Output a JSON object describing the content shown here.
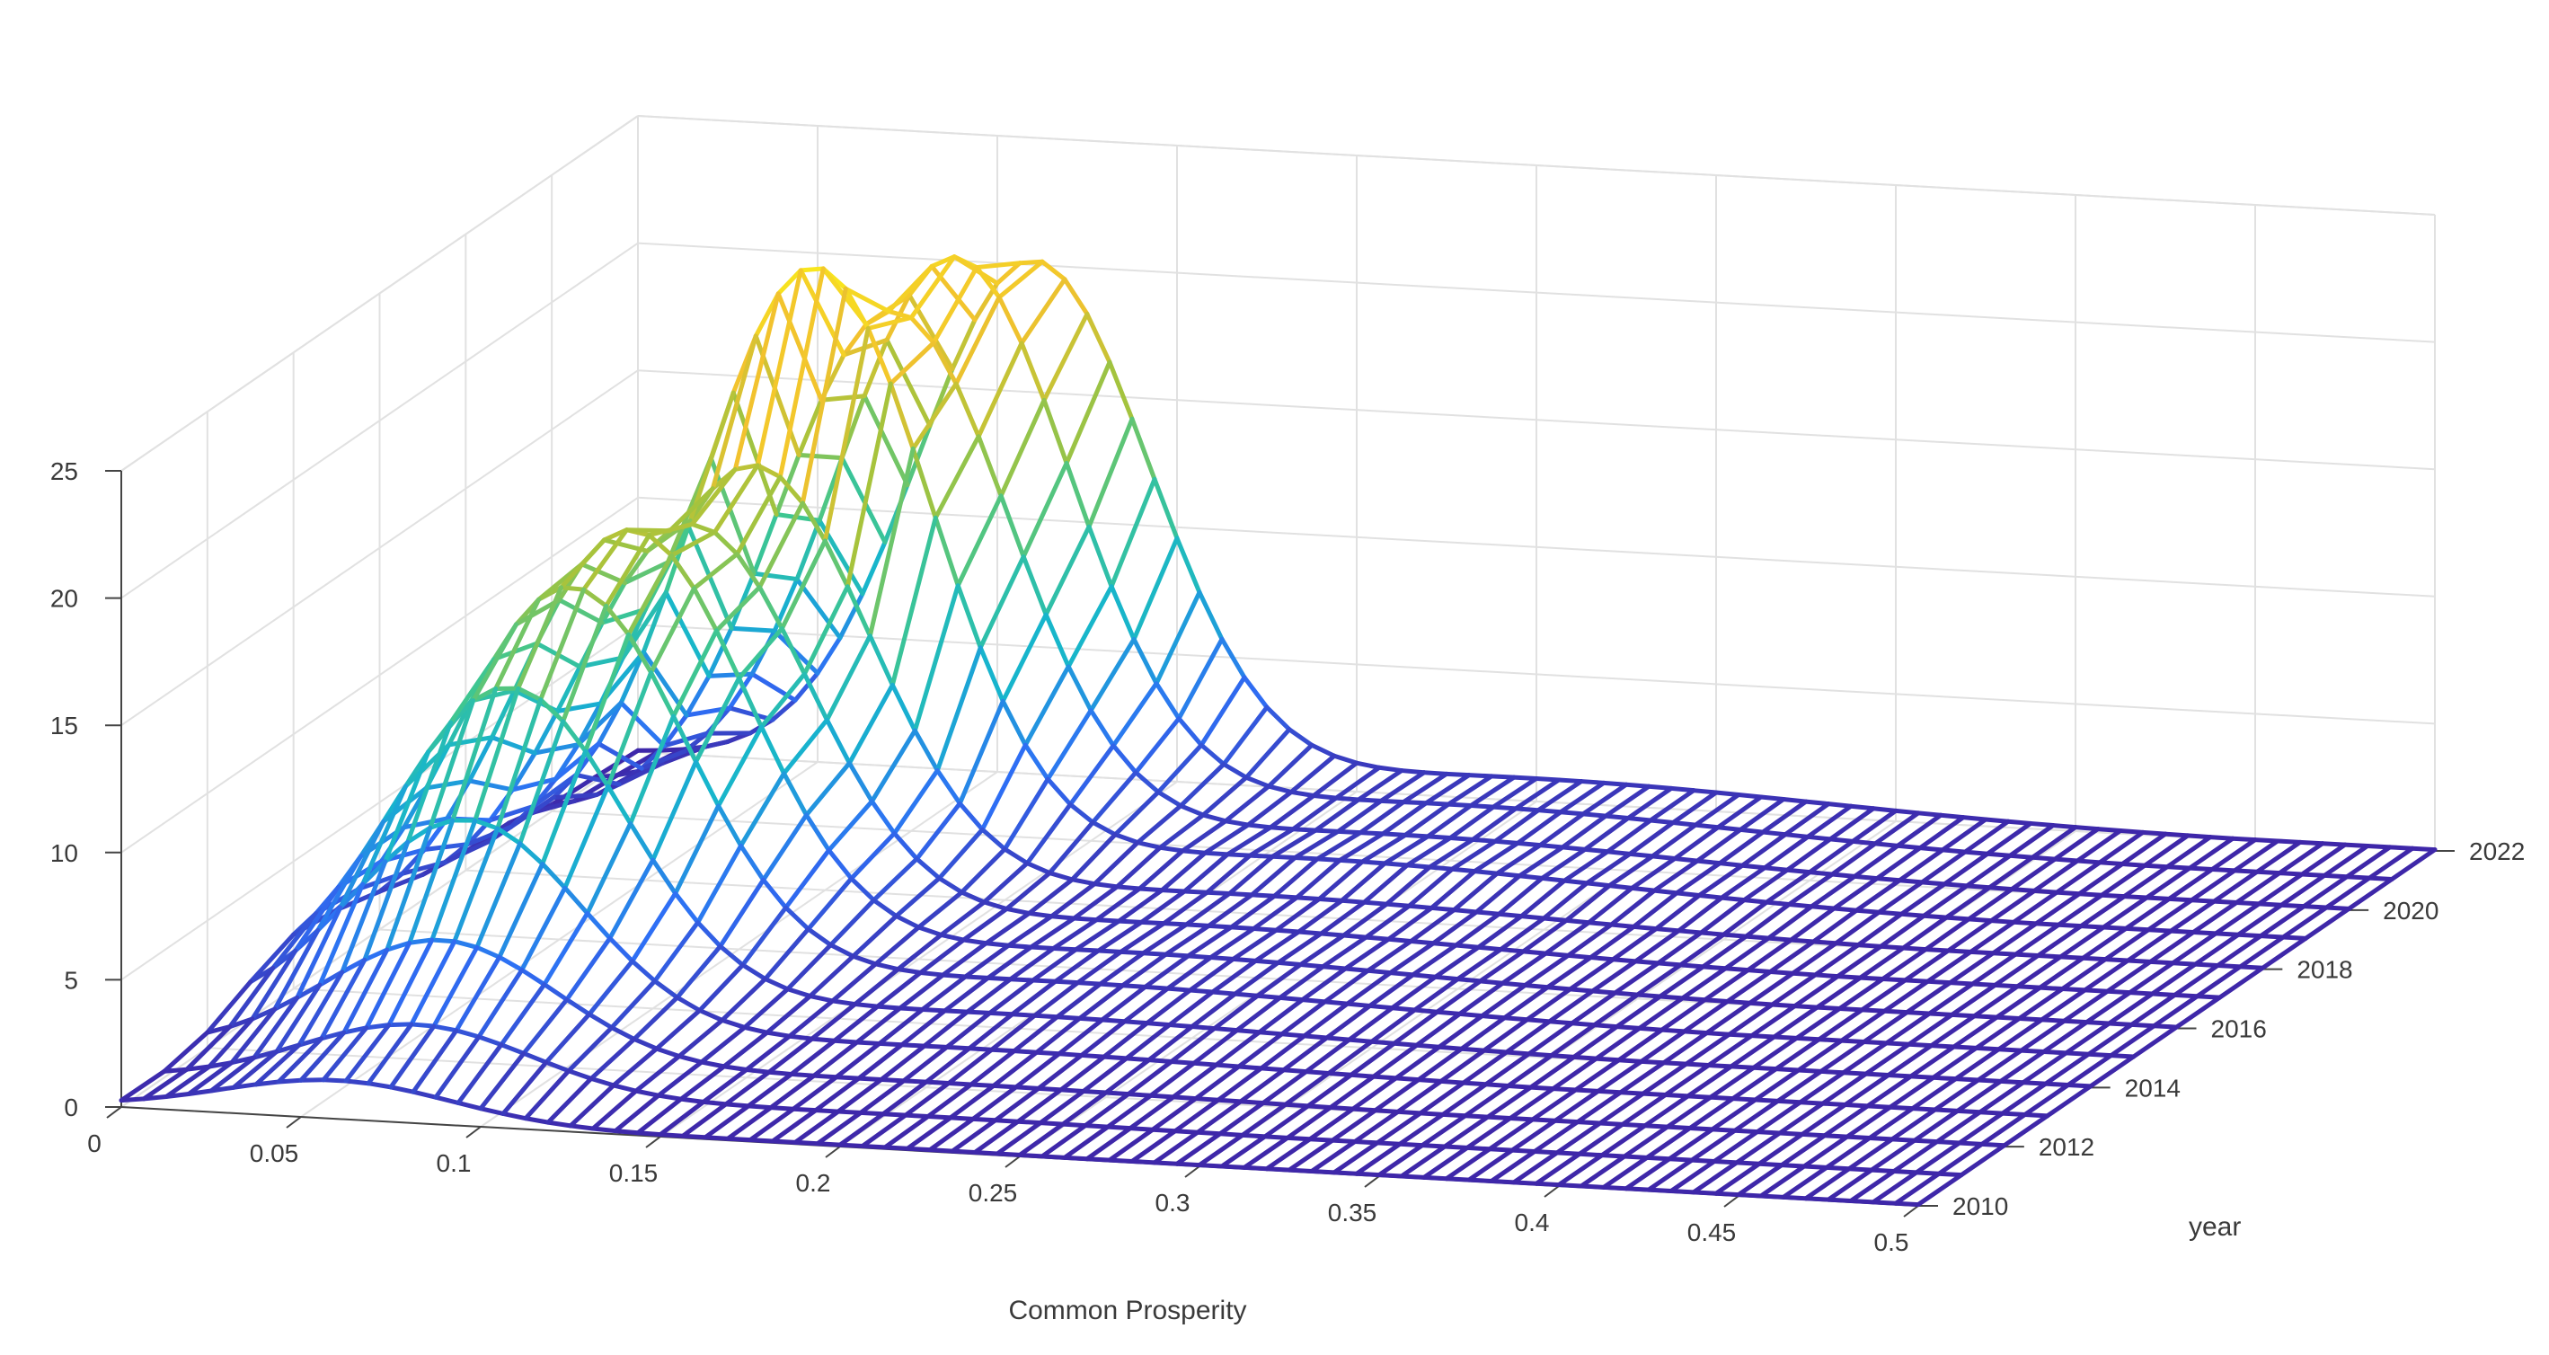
{
  "chart_data": {
    "type": "surface",
    "title": "",
    "xlabel": "Common Prosperity",
    "ylabel": "year",
    "zlabel": "",
    "xlim": [
      0,
      0.5
    ],
    "ylim": [
      2010,
      2022
    ],
    "zlim": [
      0,
      25
    ],
    "x_ticks": [
      0,
      0.05,
      0.1,
      0.15,
      0.2,
      0.25,
      0.3,
      0.35,
      0.4,
      0.45,
      0.5
    ],
    "x_tick_labels": [
      "0",
      "0.05",
      "0.1",
      "0.15",
      "0.2",
      "0.25",
      "0.3",
      "0.35",
      "0.4",
      "0.45",
      "0.5"
    ],
    "y_ticks": [
      2010,
      2012,
      2014,
      2016,
      2018,
      2020,
      2022
    ],
    "y_tick_labels": [
      "2010",
      "2012",
      "2014",
      "2016",
      "2018",
      "2020",
      "2022"
    ],
    "z_ticks": [
      0,
      5,
      10,
      15,
      20,
      25
    ],
    "z_tick_labels": [
      "0",
      "5",
      "10",
      "15",
      "20",
      "25"
    ],
    "grid": true,
    "colormap": [
      "#3e26a8",
      "#2e6ff5",
      "#17b5cc",
      "#3fc690",
      "#a6c33c",
      "#f2c22e",
      "#f8e61d"
    ],
    "years": [
      2010,
      2011,
      2012,
      2013,
      2014,
      2015,
      2016,
      2017,
      2018,
      2019,
      2020,
      2021,
      2022
    ],
    "density_peaks": [
      {
        "year": 2010,
        "location": 0.06,
        "height": 1.5
      },
      {
        "year": 2011,
        "location": 0.07,
        "height": 2.6
      },
      {
        "year": 2012,
        "location": 0.065,
        "height": 4.7
      },
      {
        "year": 2013,
        "location": 0.06,
        "height": 8.2
      },
      {
        "year": 2014,
        "location": 0.06,
        "height": 12.2
      },
      {
        "year": 2015,
        "location": 0.065,
        "height": 15.0
      },
      {
        "year": 2016,
        "location": 0.07,
        "height": 16.1
      },
      {
        "year": 2017,
        "location": 0.075,
        "height": 15.2
      },
      {
        "year": 2018,
        "location": 0.08,
        "height": 16.4
      },
      {
        "year": 2019,
        "location": 0.085,
        "height": 23.0
      },
      {
        "year": 2020,
        "location": 0.095,
        "height": 20.2
      },
      {
        "year": 2021,
        "location": 0.1,
        "height": 21.2
      },
      {
        "year": 2022,
        "location": 0.11,
        "height": 20.0
      }
    ]
  }
}
